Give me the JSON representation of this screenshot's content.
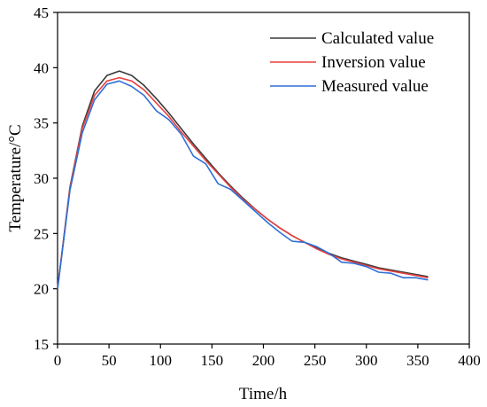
{
  "chart_data": {
    "type": "line",
    "title": "",
    "xlabel": "Time/h",
    "ylabel": "Temperature/°C",
    "xlim": [
      0,
      400
    ],
    "ylim": [
      15,
      45
    ],
    "xticks": [
      0,
      50,
      100,
      150,
      200,
      250,
      300,
      350,
      400
    ],
    "yticks": [
      15,
      20,
      25,
      30,
      35,
      40,
      45
    ],
    "grid": false,
    "legend_position": "top-right",
    "series": [
      {
        "name": "Calculated value",
        "color": "#3a3a3a",
        "x": [
          0,
          12,
          24,
          36,
          48,
          60,
          72,
          84,
          96,
          108,
          120,
          132,
          144,
          156,
          168,
          180,
          192,
          204,
          216,
          228,
          240,
          252,
          264,
          276,
          288,
          300,
          312,
          324,
          336,
          348,
          360
        ],
        "y": [
          20.0,
          29.2,
          34.7,
          37.9,
          39.3,
          39.7,
          39.3,
          38.4,
          37.2,
          35.9,
          34.5,
          33.1,
          31.8,
          30.5,
          29.3,
          28.2,
          27.2,
          26.3,
          25.5,
          24.8,
          24.2,
          23.7,
          23.2,
          22.8,
          22.5,
          22.2,
          21.9,
          21.7,
          21.5,
          21.3,
          21.1
        ]
      },
      {
        "name": "Inversion value",
        "color": "#e8423f",
        "x": [
          0,
          12,
          24,
          36,
          48,
          60,
          72,
          84,
          96,
          108,
          120,
          132,
          144,
          156,
          168,
          180,
          192,
          204,
          216,
          228,
          240,
          252,
          264,
          276,
          288,
          300,
          312,
          324,
          336,
          348,
          360
        ],
        "y": [
          20.0,
          29.1,
          34.5,
          37.5,
          38.8,
          39.1,
          38.8,
          38.0,
          36.8,
          35.6,
          34.2,
          32.9,
          31.6,
          30.4,
          29.2,
          28.1,
          27.2,
          26.3,
          25.5,
          24.8,
          24.2,
          23.6,
          23.1,
          22.7,
          22.4,
          22.1,
          21.8,
          21.6,
          21.4,
          21.2,
          21.0
        ]
      },
      {
        "name": "Measured value",
        "color": "#2f6fd6",
        "x": [
          0,
          12,
          24,
          36,
          48,
          60,
          72,
          84,
          96,
          108,
          120,
          132,
          144,
          156,
          168,
          180,
          192,
          204,
          216,
          228,
          240,
          252,
          264,
          276,
          288,
          300,
          312,
          324,
          336,
          348,
          360
        ],
        "y": [
          20.0,
          28.9,
          34.1,
          37.1,
          38.5,
          38.8,
          38.3,
          37.5,
          36.1,
          35.3,
          34.0,
          32.0,
          31.3,
          29.5,
          29.0,
          28.0,
          27.0,
          26.0,
          25.1,
          24.3,
          24.2,
          23.8,
          23.2,
          22.4,
          22.3,
          22.0,
          21.5,
          21.4,
          21.0,
          21.0,
          20.8
        ]
      }
    ]
  }
}
